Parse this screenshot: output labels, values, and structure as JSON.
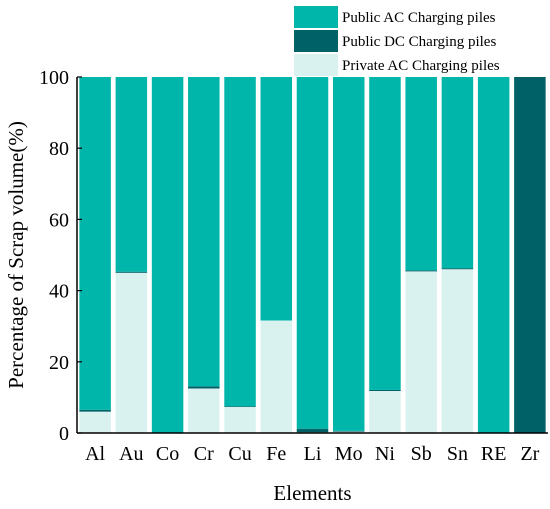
{
  "chart_data": {
    "type": "bar",
    "stacked": true,
    "orientation": "vertical",
    "xlabel": "Elements",
    "ylabel": "Percentage of Scrap volume(%)",
    "ylim": [
      0,
      100
    ],
    "yticks": [
      0,
      20,
      40,
      60,
      80,
      100
    ],
    "grid": false,
    "legend_position": "top-right",
    "categories": [
      "Al",
      "Au",
      "Co",
      "Cr",
      "Cu",
      "Fe",
      "Li",
      "Mo",
      "Ni",
      "Sb",
      "Sn",
      "RE",
      "Zr"
    ],
    "series": [
      {
        "name": "Private AC Charging piles",
        "color": "#d9f2f0",
        "values": [
          6.0,
          45.0,
          0.0,
          12.5,
          7.3,
          31.6,
          0.2,
          0.4,
          11.8,
          45.4,
          46.0,
          0.0,
          0.0
        ]
      },
      {
        "name": "Public DC Charging piles",
        "color": "#006266",
        "values": [
          0.5,
          0.3,
          0.0,
          0.6,
          0.2,
          0.0,
          1.0,
          0.2,
          0.3,
          0.3,
          0.3,
          0.0,
          100.0
        ]
      },
      {
        "name": "Public AC Charging piles",
        "color": "#00b5aa",
        "values": [
          93.5,
          54.7,
          100.0,
          86.9,
          92.5,
          68.4,
          98.8,
          99.4,
          87.9,
          54.3,
          53.7,
          100.0,
          0.0
        ]
      }
    ],
    "legend_order": [
      "Public AC Charging piles",
      "Public DC Charging piles",
      "Private AC Charging piles"
    ]
  }
}
